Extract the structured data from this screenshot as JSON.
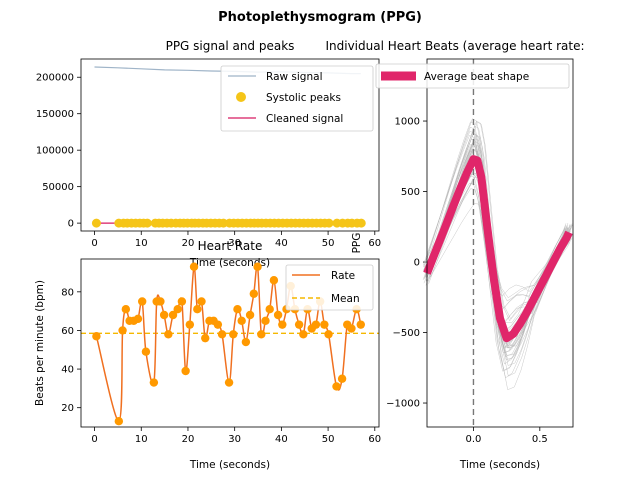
{
  "figure": {
    "suptitle": "Photoplethysmogram (PPG)"
  },
  "chart_data": [
    {
      "id": "signal",
      "type": "line",
      "title": "PPG signal and peaks",
      "xlabel": "Time (seconds)",
      "ylabel": "",
      "xlim": [
        -2.9,
        60.9
      ],
      "ylim": [
        -10800,
        225000
      ],
      "xticks": [
        0,
        10,
        20,
        30,
        40,
        50,
        60
      ],
      "yticks": [
        0,
        50000,
        100000,
        150000,
        200000
      ],
      "ytick_labels": [
        "0",
        "50000",
        "100000",
        "150000",
        "200000"
      ],
      "legend": [
        "Raw signal",
        "Systolic peaks",
        "Cleaned signal"
      ],
      "legend_position": "upper right",
      "raw_signal": {
        "name": "Raw signal",
        "color": "#9fb4c8",
        "x": [
          0,
          5,
          10,
          15,
          20,
          25,
          30,
          35,
          40,
          45,
          50,
          55,
          57
        ],
        "y": [
          214000,
          213000,
          211500,
          210000,
          209500,
          208500,
          208000,
          207000,
          207500,
          206500,
          206000,
          205000,
          205000
        ]
      },
      "cleaned_signal": {
        "name": "Cleaned signal",
        "color": "#d81b60",
        "x": [
          0,
          57
        ],
        "y": [
          0,
          0
        ]
      },
      "peaks": {
        "name": "Systolic peaks",
        "color": "#f5c518",
        "x": [
          0.4,
          5.2,
          6.2,
          7.0,
          7.9,
          8.8,
          9.7,
          10.5,
          11.3,
          13.0,
          13.8,
          14.6,
          15.5,
          16.4,
          17.4,
          18.3,
          19.1,
          19.9,
          20.8,
          21.5,
          22.3,
          23.2,
          24.0,
          24.9,
          25.8,
          26.7,
          27.6,
          28.9,
          29.8,
          30.7,
          31.6,
          32.5,
          33.4,
          34.2,
          35.0,
          35.8,
          36.7,
          37.6,
          38.5,
          39.4,
          40.3,
          41.2,
          42.1,
          43.0,
          43.9,
          44.8,
          45.7,
          46.6,
          47.5,
          48.4,
          49.3,
          50.2,
          51.9,
          53.1,
          54.2,
          55.1,
          56.2,
          57.1
        ],
        "y": 0
      }
    },
    {
      "id": "rate",
      "type": "line",
      "title": "Heart Rate",
      "xlabel": "Time (seconds)",
      "ylabel": "Beats per minute (bpm)",
      "xlim": [
        -2.9,
        60.9
      ],
      "ylim": [
        10,
        97
      ],
      "xticks": [
        0,
        10,
        20,
        30,
        40,
        50,
        60
      ],
      "yticks": [
        20,
        40,
        60,
        80
      ],
      "legend": [
        "Rate",
        "Mean"
      ],
      "legend_position": "upper right",
      "mean": 58.5,
      "rate_color": "#f07020",
      "mean_color": "#f5b800",
      "marker_color": "#ff9900",
      "series": [
        {
          "name": "Rate",
          "x": [
            0.4,
            5.2,
            6.0,
            6.7,
            7.5,
            8.4,
            9.3,
            10.2,
            11.0,
            12.7,
            13.3,
            14.1,
            14.9,
            15.8,
            16.8,
            17.8,
            18.7,
            19.5,
            20.4,
            21.3,
            22.0,
            22.9,
            23.7,
            24.6,
            25.5,
            26.4,
            27.3,
            28.8,
            29.7,
            30.6,
            31.5,
            32.4,
            33.3,
            34.1,
            34.9,
            35.7,
            36.6,
            37.5,
            38.4,
            39.3,
            40.2,
            41.1,
            42.0,
            42.9,
            43.8,
            44.7,
            45.6,
            46.5,
            47.4,
            48.3,
            49.2,
            50.1,
            51.8,
            53.0,
            54.1,
            55.0,
            56.1,
            57.0
          ],
          "y": [
            57,
            13,
            60,
            71,
            65,
            65,
            66,
            75,
            49,
            33,
            75,
            75,
            68,
            58,
            68,
            71,
            75,
            39,
            63,
            93,
            71,
            75,
            56,
            65,
            65,
            63,
            58,
            33,
            58,
            71,
            65,
            54,
            68,
            79,
            93,
            58,
            65,
            71,
            86,
            68,
            63,
            71,
            83,
            71,
            63,
            58,
            71,
            61,
            63,
            75,
            63,
            58,
            31,
            35,
            63,
            61,
            71,
            63
          ]
        }
      ]
    },
    {
      "id": "beats",
      "type": "line",
      "title": "Individual Heart Beats (average heart rate:",
      "xlabel": "Time (seconds)",
      "ylabel": "PPG",
      "xlim": [
        -0.35,
        0.75
      ],
      "ylim": [
        -1170,
        1440
      ],
      "xticks": [
        0.0,
        0.5
      ],
      "xtick_labels": [
        "0.0",
        "0.5"
      ],
      "yticks": [
        -1000,
        -500,
        0,
        500,
        1000
      ],
      "ytick_labels": [
        "−1000",
        "−500",
        "0",
        "500",
        "1000"
      ],
      "legend": [
        "Average beat shape"
      ],
      "legend_position": "upper right",
      "vline_x": 0,
      "individual_color": "#b0b0b0",
      "average": {
        "name": "Average beat shape",
        "color": "#e0266a",
        "x": [
          -0.35,
          -0.3,
          -0.25,
          -0.2,
          -0.15,
          -0.1,
          -0.05,
          0.0,
          0.03,
          0.06,
          0.1,
          0.15,
          0.2,
          0.25,
          0.3,
          0.35,
          0.4,
          0.45,
          0.5,
          0.55,
          0.6,
          0.65,
          0.7,
          0.72
        ],
        "y": [
          -80,
          40,
          160,
          280,
          400,
          520,
          630,
          730,
          720,
          600,
          280,
          -100,
          -400,
          -540,
          -510,
          -440,
          -360,
          -270,
          -180,
          -90,
          0,
          90,
          170,
          210
        ]
      }
    }
  ]
}
